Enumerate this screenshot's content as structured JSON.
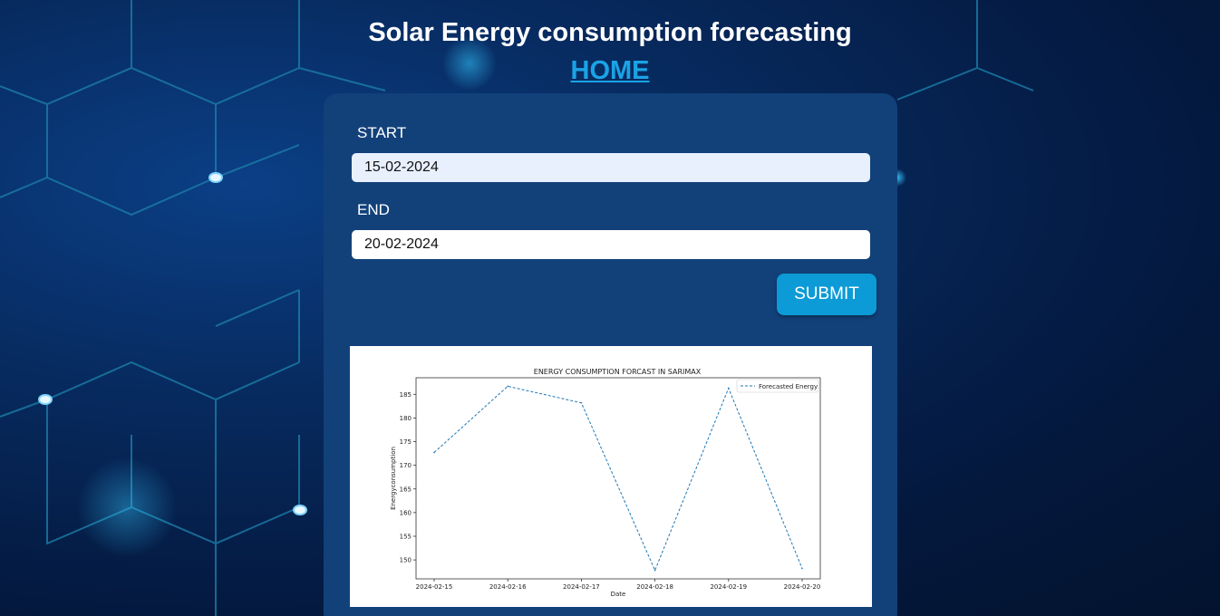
{
  "header": {
    "title": "Solar Energy consumption forecasting",
    "home_link": "HOME"
  },
  "form": {
    "start_label": "START",
    "start_value": "15-02-2024",
    "end_label": "END",
    "end_value": "20-02-2024",
    "submit_label": "SUBMIT"
  },
  "colors": {
    "accent": "#0c9bd6",
    "card": "#12417a",
    "series": "#1f77b4"
  },
  "chart_data": {
    "type": "line",
    "title": "ENERGY CONSUMPTION FORCAST IN SARIMAX",
    "xlabel": "Date",
    "ylabel": "Energyconsumption",
    "x": [
      "2024-02-15",
      "2024-02-16",
      "2024-02-17",
      "2024-02-18",
      "2024-02-19",
      "2024-02-20"
    ],
    "series": [
      {
        "name": "Forecasted Energy",
        "values": [
          172.7,
          186.7,
          183.2,
          147.8,
          186.3,
          148.2
        ],
        "style": "dashed"
      }
    ],
    "yticks": [
      150,
      155,
      160,
      165,
      170,
      175,
      180,
      185
    ],
    "ylim": [
      146,
      188.5
    ],
    "legend": "top-right",
    "grid": false
  }
}
